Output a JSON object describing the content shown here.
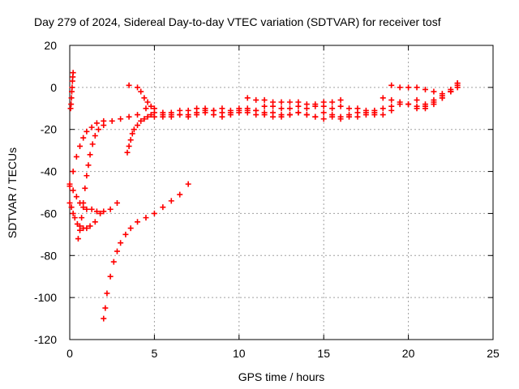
{
  "chart_data": {
    "type": "scatter",
    "title": "Day 279 of 2024, Sidereal Day-to-day VTEC variation (SDTVAR) for receiver tosf",
    "xlabel": "GPS time / hours",
    "ylabel": "SDTVAR / TECUs",
    "xlim": [
      0,
      25
    ],
    "ylim": [
      -120,
      20
    ],
    "xticks": [
      0,
      5,
      10,
      15,
      20,
      25
    ],
    "yticks": [
      -120,
      -100,
      -80,
      -60,
      -40,
      -20,
      0,
      20
    ],
    "xtick_labels": [
      "0",
      "5",
      "10",
      "15",
      "20",
      "25"
    ],
    "ytick_labels": [
      "-120",
      "-100",
      "-80",
      "-60",
      "-40",
      "-20",
      "0",
      "20"
    ],
    "grid": true,
    "marker": "plus",
    "color": "#ff0000",
    "series": [
      {
        "x": [
          0.05,
          0.08,
          0.1,
          0.12,
          0.14,
          0.16,
          0.18,
          0.2
        ],
        "y": [
          -10,
          -8,
          -5,
          -2,
          0,
          3,
          5,
          7
        ]
      },
      {
        "x": [
          0.0,
          0.2,
          0.4,
          0.6,
          0.8,
          1.0,
          1.3,
          1.6,
          2.0,
          2.5,
          3.0,
          3.5,
          4.0
        ],
        "y": [
          -46,
          -40,
          -33,
          -28,
          -24,
          -21,
          -19,
          -17,
          -16,
          -16,
          -15,
          -14,
          -13
        ]
      },
      {
        "x": [
          0.0,
          0.1,
          0.2,
          0.3,
          0.45,
          0.6,
          0.8,
          1.0,
          1.2,
          1.5,
          1.8
        ],
        "y": [
          -55,
          -57,
          -60,
          -62,
          -65,
          -66,
          -67,
          -67,
          -66,
          -64,
          -60
        ]
      },
      {
        "x": [
          0.0,
          0.2,
          0.4,
          0.6,
          0.8,
          1.0,
          1.3,
          1.6,
          2.0,
          2.4,
          2.8
        ],
        "y": [
          -47,
          -49,
          -52,
          -55,
          -57,
          -58,
          -58,
          -59,
          -59,
          -58,
          -55
        ]
      },
      {
        "x": [
          0.5,
          0.6,
          0.7,
          0.8,
          0.9,
          1.0,
          1.1,
          1.2,
          1.35,
          1.5,
          1.7,
          2.0
        ],
        "y": [
          -72,
          -68,
          -62,
          -55,
          -48,
          -42,
          -37,
          -32,
          -27,
          -23,
          -20,
          -18
        ]
      },
      {
        "x": [
          2.0,
          2.1,
          2.2,
          2.4,
          2.6,
          2.8,
          3.0,
          3.3,
          3.6,
          4.0,
          4.5,
          5.0,
          5.5,
          6.0,
          6.5,
          7.0
        ],
        "y": [
          -110,
          -105,
          -98,
          -90,
          -83,
          -78,
          -74,
          -70,
          -67,
          -64,
          -62,
          -60,
          -57,
          -54,
          -51,
          -46
        ]
      },
      {
        "x": [
          3.4,
          3.5,
          3.6,
          3.7,
          3.8,
          4.0,
          4.2,
          4.4,
          4.6,
          4.8
        ],
        "y": [
          -31,
          -28,
          -25,
          -22,
          -20,
          -18,
          -16,
          -15,
          -14,
          -13
        ]
      },
      {
        "x": [
          3.5,
          4.0,
          4.2,
          4.4,
          4.6,
          4.8,
          5.0,
          5.5,
          6.0,
          6.5,
          7.0,
          7.5,
          8.0,
          8.5,
          9.0,
          9.5,
          10.0,
          10.5,
          11.0,
          11.5,
          12.0,
          12.5,
          13.0,
          13.5,
          14.0,
          14.5,
          15.0,
          15.5,
          16.0,
          16.5,
          17.0,
          17.5,
          18.0,
          18.5,
          19.0,
          19.5,
          20.0,
          20.5,
          21.0,
          21.5,
          22.0,
          22.5,
          22.9
        ],
        "y": [
          1,
          0,
          -2,
          -5,
          -7,
          -9,
          -10,
          -12,
          -12,
          -11,
          -11,
          -10,
          -10,
          -11,
          -10,
          -11,
          -10,
          -10,
          -11,
          -9,
          -9,
          -10,
          -10,
          -9,
          -10,
          -9,
          -9,
          -10,
          -9,
          -10,
          -10,
          -11,
          -11,
          -10,
          -9,
          -8,
          -8,
          -9,
          -9,
          -7,
          -5,
          -2,
          1
        ]
      },
      {
        "x": [
          4.5,
          5.0,
          5.5,
          6.0,
          6.5,
          7.0,
          7.5,
          8.0,
          8.5,
          9.0,
          9.5,
          10.0,
          10.5,
          11.0,
          11.5,
          12.0,
          12.5,
          13.0,
          13.5,
          14.0,
          14.5,
          15.0,
          15.5,
          16.0,
          16.5,
          17.0,
          17.5,
          18.0,
          18.5,
          19.0
        ],
        "y": [
          -10,
          -12,
          -13,
          -14,
          -13,
          -13,
          -12,
          -11,
          -11,
          -12,
          -13,
          -12,
          -11,
          -11,
          -12,
          -12,
          -13,
          -13,
          -12,
          -13,
          -14,
          -12,
          -13,
          -14,
          -13,
          -12,
          -12,
          -13,
          -13,
          -11
        ]
      },
      {
        "x": [
          5.0,
          5.5,
          6.0,
          6.5,
          7.0,
          7.5,
          8.0,
          8.5,
          9.0,
          9.5,
          10.0,
          10.5,
          11.0,
          11.5,
          12.0,
          12.5,
          13.0,
          13.5,
          14.0,
          14.5,
          15.0,
          15.5,
          16.0,
          16.5,
          17.0,
          17.5,
          18.0
        ],
        "y": [
          -14,
          -14,
          -13,
          -13,
          -14,
          -13,
          -12,
          -13,
          -14,
          -12,
          -11,
          -12,
          -13,
          -13,
          -14,
          -14,
          -13,
          -12,
          -13,
          -14,
          -15,
          -14,
          -15,
          -14,
          -14,
          -13,
          -12
        ]
      },
      {
        "x": [
          10.5,
          11.0,
          11.5,
          12.0,
          12.5,
          13.0,
          13.5,
          14.0,
          14.5,
          15.0,
          15.5,
          16.0
        ],
        "y": [
          -5,
          -6,
          -6,
          -7,
          -7,
          -7,
          -7,
          -8,
          -8,
          -7,
          -7,
          -6
        ]
      },
      {
        "x": [
          18.5,
          19.0,
          19.5,
          20.0,
          20.5,
          21.0,
          21.5,
          22.0,
          22.5,
          22.9
        ],
        "y": [
          -5,
          -6,
          -7,
          -8,
          -10,
          -10,
          -8,
          -5,
          -2,
          2
        ]
      },
      {
        "x": [
          19.0,
          19.5,
          20.0,
          20.5,
          21.0,
          21.5,
          22.0,
          22.5,
          22.9
        ],
        "y": [
          1,
          0,
          0,
          0,
          -1,
          -2,
          -3,
          -1,
          2
        ]
      },
      {
        "x": [
          20.5,
          21.0,
          21.5,
          22.0,
          22.5,
          22.9
        ],
        "y": [
          -6,
          -8,
          -6,
          -4,
          -2,
          0
        ]
      }
    ]
  }
}
